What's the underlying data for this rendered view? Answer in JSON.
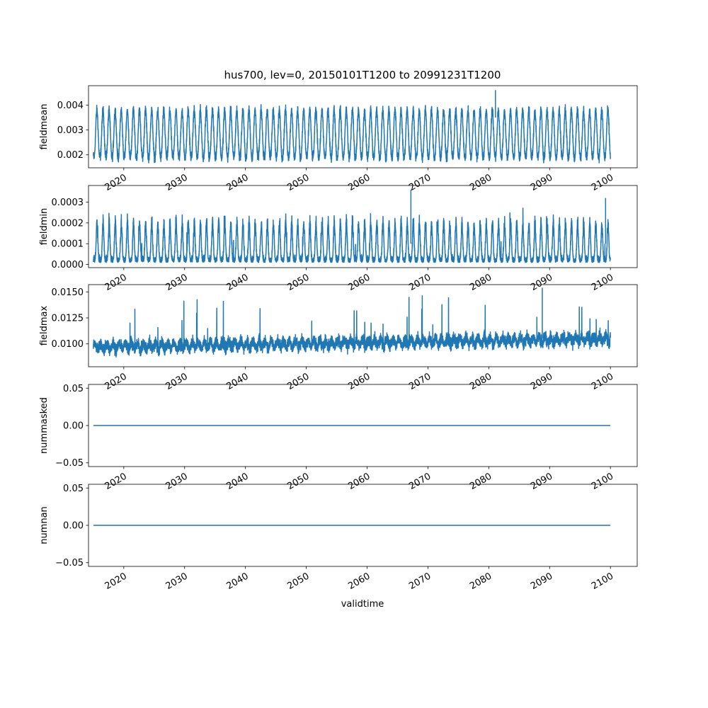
{
  "title": "hus700, lev=0, 20150101T1200 to 20991231T1200",
  "xlabel": "validtime",
  "x_ticks": [
    "2020",
    "2030",
    "2040",
    "2050",
    "2060",
    "2070",
    "2080",
    "2090",
    "2100"
  ],
  "line_color": "#1f77b4",
  "chart_data": [
    {
      "type": "line",
      "ylabel": "fieldmean",
      "x_range": [
        "2015-01-01",
        "2099-12-31"
      ],
      "xlim": [
        2014.2,
        2104.4
      ],
      "ylim": [
        0.00148,
        0.00478
      ],
      "yticks": [
        "0.002",
        "0.003",
        "0.004"
      ],
      "yticks_values": [
        0.002,
        0.003,
        0.004
      ],
      "series": [
        {
          "pattern": "annual seasonal cycle with high-frequency noise",
          "annual_low": 0.0019,
          "annual_high": 0.0038,
          "min": 0.00155,
          "max": 0.0046
        }
      ]
    },
    {
      "type": "line",
      "ylabel": "fieldmin",
      "x_range": [
        "2015-01-01",
        "2099-12-31"
      ],
      "xlim": [
        2014.2,
        2104.4
      ],
      "ylim": [
        -1.5e-05,
        0.00038
      ],
      "yticks": [
        "0.0000",
        "0.0001",
        "0.0002",
        "0.0003"
      ],
      "yticks_values": [
        0.0,
        0.0001,
        0.0002,
        0.0003
      ],
      "series": [
        {
          "pattern": "annual seasonal cycle with high-frequency noise",
          "annual_low": 1e-05,
          "annual_high": 0.00022,
          "min": 0.0,
          "max": 0.00036
        }
      ]
    },
    {
      "type": "line",
      "ylabel": "fieldmax",
      "x_range": [
        "2015-01-01",
        "2099-12-31"
      ],
      "xlim": [
        2014.2,
        2104.4
      ],
      "ylim": [
        0.0078,
        0.0157
      ],
      "yticks": [
        "0.0100",
        "0.0125",
        "0.0150"
      ],
      "yticks_values": [
        0.01,
        0.0125,
        0.015
      ],
      "series": [
        {
          "pattern": "noisy, slowly increasing with spikes",
          "start_mean": 0.0097,
          "end_mean": 0.0105,
          "min": 0.0082,
          "max": 0.0154
        }
      ]
    },
    {
      "type": "line",
      "ylabel": "nummasked",
      "x_range": [
        "2015-01-01",
        "2099-12-31"
      ],
      "xlim": [
        2014.2,
        2104.4
      ],
      "ylim": [
        -0.055,
        0.055
      ],
      "yticks": [
        "−0.05",
        "0.00",
        "0.05"
      ],
      "yticks_values": [
        -0.05,
        0.0,
        0.05
      ],
      "series": [
        {
          "constant": 0.0
        }
      ]
    },
    {
      "type": "line",
      "ylabel": "numnan",
      "x_range": [
        "2015-01-01",
        "2099-12-31"
      ],
      "xlim": [
        2014.2,
        2104.4
      ],
      "ylim": [
        -0.055,
        0.055
      ],
      "yticks": [
        "−0.05",
        "0.00",
        "0.05"
      ],
      "yticks_values": [
        -0.05,
        0.0,
        0.05
      ],
      "series": [
        {
          "constant": 0.0
        }
      ]
    }
  ]
}
